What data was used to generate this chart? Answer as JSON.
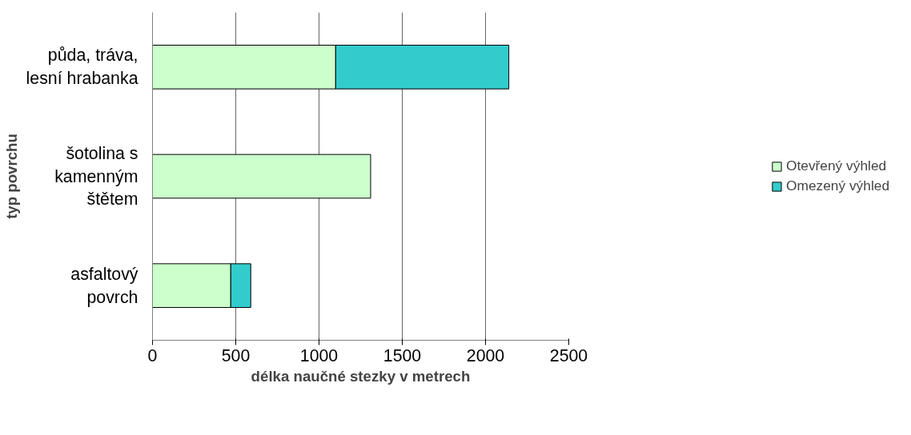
{
  "chart_data": {
    "type": "bar",
    "orientation": "horizontal",
    "stacked": true,
    "xlabel": "délka naučné stezky v metrech",
    "ylabel": "typ povrchu",
    "categories": [
      "půda, tráva,\nlesní hrabanka",
      "šotolina s\nkamenným\nštětem",
      "asfaltový\npovrch"
    ],
    "series": [
      {
        "name": "Otevřený výhled",
        "color": "#ccffcc",
        "values": [
          1100,
          1310,
          470
        ]
      },
      {
        "name": "Omezený výhled",
        "color": "#33cccc",
        "values": [
          1040,
          null,
          120
        ]
      }
    ],
    "xlim": [
      0,
      2500
    ],
    "xticks": [
      0,
      500,
      1000,
      1500,
      2000,
      2500
    ],
    "grid": "x",
    "legend": "right"
  }
}
